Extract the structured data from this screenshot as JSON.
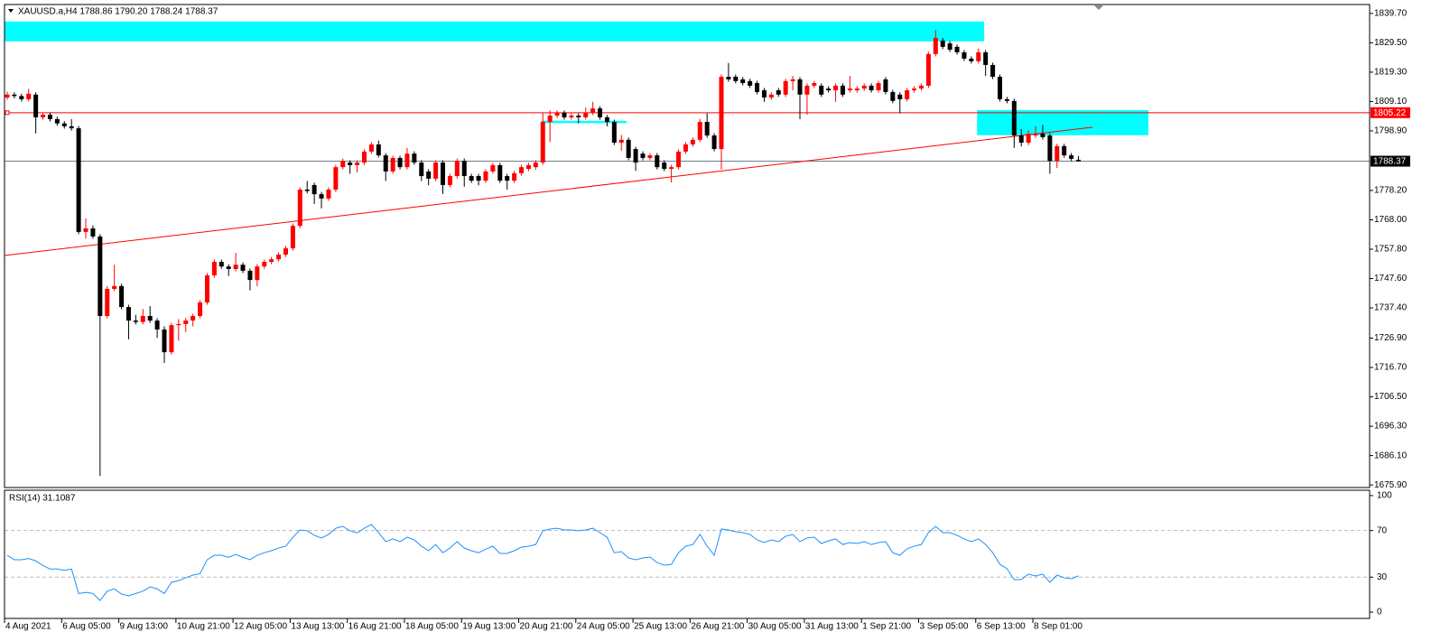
{
  "chart_data": [
    {
      "type": "candlestick",
      "title": "XAUUSD.a,H4 1788.86 1790.20 1788.24 1788.37",
      "up_color": "#ff0000",
      "down_color": "#000000",
      "categories": [
        "4 Aug 2021",
        null,
        null,
        null,
        null,
        null,
        null,
        null,
        "6 Aug 05:00",
        null,
        null,
        null,
        null,
        null,
        null,
        null,
        "9 Aug 13:00",
        null,
        null,
        null,
        null,
        null,
        null,
        null,
        "10 Aug 21:00",
        null,
        null,
        null,
        null,
        null,
        null,
        null,
        "12 Aug 05:00",
        null,
        null,
        null,
        null,
        null,
        null,
        null,
        "13 Aug 13:00",
        null,
        null,
        null,
        null,
        null,
        null,
        null,
        "16 Aug 21:00",
        null,
        null,
        null,
        null,
        null,
        null,
        null,
        "18 Aug 05:00",
        null,
        null,
        null,
        null,
        null,
        null,
        null,
        "19 Aug 13:00",
        null,
        null,
        null,
        null,
        null,
        null,
        null,
        "20 Aug 21:00",
        null,
        null,
        null,
        null,
        null,
        null,
        null,
        "24 Aug 05:00",
        null,
        null,
        null,
        null,
        null,
        null,
        null,
        "25 Aug 13:00",
        null,
        null,
        null,
        null,
        null,
        null,
        null,
        "26 Aug 21:00",
        null,
        null,
        null,
        null,
        null,
        null,
        null,
        "30 Aug 05:00",
        null,
        null,
        null,
        null,
        null,
        null,
        null,
        "31 Aug 13:00",
        null,
        null,
        null,
        null,
        null,
        null,
        null,
        "1 Sep 21:00",
        null,
        null,
        null,
        null,
        null,
        null,
        null,
        "3 Sep 05:00",
        null,
        null,
        null,
        null,
        null,
        null,
        null,
        "6 Sep 13:00",
        null,
        null,
        null,
        null,
        null,
        null,
        null,
        "8 Sep 01:00",
        null,
        null,
        null,
        null,
        null,
        null
      ],
      "open": [
        1810.5,
        1811.5,
        1811.0,
        1809.9,
        1811.5,
        1803.6,
        1804.5,
        1803.0,
        1801.5,
        1800.5,
        1799.8,
        1763.8,
        1765.0,
        1762.2,
        1734.6,
        1744.0,
        1745.0,
        1737.7,
        1733.0,
        1732.5,
        1734.6,
        1733.0,
        1729.9,
        1722.0,
        1731.4,
        1731.8,
        1733.0,
        1734.6,
        1739.3,
        1748.7,
        1753.4,
        1751.8,
        1750.9,
        1752.4,
        1750.3,
        1747.1,
        1751.8,
        1753.4,
        1754.3,
        1755.9,
        1758.1,
        1765.9,
        1778.5,
        1780.1,
        1776.9,
        1775.4,
        1778.5,
        1786.3,
        1787.9,
        1787.0,
        1787.9,
        1791.7,
        1794.2,
        1790.4,
        1784.8,
        1789.5,
        1786.3,
        1791.0,
        1787.9,
        1784.8,
        1782.3,
        1787.9,
        1780.1,
        1783.2,
        1788.5,
        1783.2,
        1783.2,
        1781.6,
        1784.8,
        1787.0,
        1783.2,
        1781.6,
        1784.2,
        1785.7,
        1786.3,
        1787.9,
        1802.0,
        1804.2,
        1805.2,
        1803.6,
        1804.2,
        1803.6,
        1805.2,
        1806.7,
        1803.6,
        1802.0,
        1794.8,
        1795.8,
        1792.6,
        1791.0,
        1789.5,
        1790.4,
        1787.9,
        1785.7,
        1786.3,
        1791.7,
        1794.2,
        1795.8,
        1802.0,
        1797.3,
        1792.6,
        1817.7,
        1817.7,
        1816.8,
        1816.2,
        1815.5,
        1813.0,
        1810.5,
        1813.0,
        1811.5,
        1816.2,
        1816.8,
        1811.5,
        1814.6,
        1814.6,
        1813.6,
        1813.0,
        1814.6,
        1813.0,
        1813.0,
        1813.6,
        1814.6,
        1813.0,
        1816.8,
        1812.4,
        1811.5,
        1809.9,
        1813.0,
        1813.6,
        1814.6,
        1825.6,
        1830.3,
        1829.3,
        1828.1,
        1826.2,
        1824.0,
        1823.1,
        1826.2,
        1821.8,
        1817.7,
        1809.9,
        1809.3,
        1797.3,
        1794.8,
        1797.3,
        1797.9,
        1797.3,
        1788.5,
        1793.6,
        1790.4,
        1788.86
      ],
      "high": [
        1812.5,
        1812.3,
        1811.8,
        1813.5,
        1812.3,
        1805.3,
        1805.3,
        1803.8,
        1802.3,
        1803.0,
        1800.6,
        1768.5,
        1766.0,
        1763.0,
        1745.0,
        1752.4,
        1745.8,
        1738.5,
        1735.0,
        1737.0,
        1738.0,
        1733.8,
        1731.0,
        1732.2,
        1733.5,
        1734.0,
        1735.4,
        1740.1,
        1749.5,
        1754.2,
        1754.2,
        1752.6,
        1756.5,
        1753.2,
        1751.1,
        1752.6,
        1754.2,
        1755.1,
        1756.7,
        1758.9,
        1766.7,
        1779.3,
        1781.5,
        1780.9,
        1777.7,
        1779.3,
        1787.1,
        1789.3,
        1788.7,
        1788.7,
        1792.5,
        1795.0,
        1795.5,
        1791.2,
        1790.3,
        1790.3,
        1793.0,
        1791.8,
        1788.7,
        1785.6,
        1788.7,
        1788.7,
        1784.0,
        1789.3,
        1789.3,
        1784.0,
        1784.0,
        1785.6,
        1787.8,
        1787.8,
        1784.0,
        1785.0,
        1787.1,
        1787.8,
        1788.7,
        1805.0,
        1806.0,
        1806.0,
        1806.0,
        1805.0,
        1805.0,
        1807.0,
        1809.0,
        1807.5,
        1804.4,
        1802.8,
        1797.5,
        1796.6,
        1793.4,
        1791.8,
        1791.2,
        1791.2,
        1788.7,
        1787.1,
        1792.5,
        1795.0,
        1796.6,
        1803.0,
        1805.0,
        1798.1,
        1818.5,
        1822.5,
        1818.5,
        1817.6,
        1817.0,
        1816.3,
        1813.8,
        1812.3,
        1813.8,
        1817.0,
        1818.0,
        1817.6,
        1815.4,
        1816.3,
        1815.4,
        1814.4,
        1815.4,
        1815.4,
        1818.0,
        1814.4,
        1815.4,
        1815.4,
        1816.3,
        1817.6,
        1813.2,
        1812.3,
        1813.8,
        1814.4,
        1815.4,
        1826.4,
        1834.0,
        1831.1,
        1830.1,
        1828.9,
        1827.0,
        1824.8,
        1827.5,
        1827.0,
        1822.6,
        1818.5,
        1810.7,
        1810.1,
        1799.5,
        1799.0,
        1800.5,
        1801.0,
        1798.1,
        1794.4,
        1794.4,
        1791.2,
        1790.2
      ],
      "low": [
        1809.7,
        1810.2,
        1809.1,
        1809.1,
        1798.0,
        1802.8,
        1802.2,
        1800.7,
        1799.7,
        1799.0,
        1763.0,
        1761.5,
        1761.4,
        1679.0,
        1733.8,
        1743.2,
        1736.9,
        1726.5,
        1731.7,
        1731.7,
        1732.2,
        1727.0,
        1718.3,
        1721.2,
        1726.0,
        1729.0,
        1731.0,
        1733.8,
        1738.5,
        1747.9,
        1751.0,
        1748.5,
        1750.1,
        1749.5,
        1743.5,
        1745.0,
        1751.0,
        1752.6,
        1753.5,
        1755.1,
        1757.3,
        1765.1,
        1777.2,
        1773.5,
        1772.0,
        1774.6,
        1777.7,
        1785.5,
        1784.0,
        1784.5,
        1787.1,
        1790.9,
        1789.6,
        1781.5,
        1784.0,
        1785.5,
        1785.5,
        1787.1,
        1781.5,
        1780.0,
        1781.5,
        1777.0,
        1779.3,
        1782.4,
        1779.5,
        1780.8,
        1780.0,
        1780.8,
        1784.0,
        1780.8,
        1778.5,
        1780.8,
        1783.4,
        1784.9,
        1785.5,
        1787.1,
        1795.0,
        1803.4,
        1802.8,
        1802.8,
        1801.5,
        1802.8,
        1804.4,
        1802.8,
        1800.5,
        1794.0,
        1792.0,
        1788.7,
        1785.0,
        1788.7,
        1788.7,
        1785.5,
        1784.9,
        1781.0,
        1785.5,
        1790.9,
        1793.4,
        1795.0,
        1796.5,
        1791.8,
        1785.5,
        1816.0,
        1815.4,
        1814.7,
        1813.8,
        1811.6,
        1809.0,
        1809.7,
        1810.7,
        1810.7,
        1813.0,
        1803.0,
        1804.5,
        1813.8,
        1810.7,
        1812.2,
        1809.0,
        1810.7,
        1812.2,
        1812.2,
        1812.8,
        1812.2,
        1812.2,
        1811.6,
        1808.5,
        1805.0,
        1809.1,
        1812.2,
        1812.8,
        1813.8,
        1824.8,
        1827.3,
        1826.3,
        1825.4,
        1823.2,
        1822.3,
        1822.3,
        1818.0,
        1816.9,
        1809.1,
        1808.5,
        1793.0,
        1793.5,
        1794.0,
        1796.5,
        1795.9,
        1784.0,
        1786.0,
        1789.6,
        1788.4,
        1788.24
      ],
      "close": [
        1811.5,
        1811.0,
        1809.9,
        1811.8,
        1803.6,
        1804.5,
        1803.0,
        1801.5,
        1800.5,
        1799.8,
        1763.8,
        1765.0,
        1762.2,
        1734.6,
        1744.0,
        1745.0,
        1737.7,
        1733.0,
        1732.5,
        1734.6,
        1733.0,
        1729.9,
        1722.0,
        1731.4,
        1731.8,
        1733.0,
        1734.6,
        1739.3,
        1748.7,
        1753.4,
        1751.8,
        1750.9,
        1752.4,
        1750.3,
        1747.1,
        1751.8,
        1753.4,
        1754.3,
        1755.9,
        1758.1,
        1765.9,
        1778.5,
        1778.0,
        1776.9,
        1775.4,
        1778.5,
        1786.3,
        1788.5,
        1787.0,
        1787.9,
        1791.7,
        1794.2,
        1790.4,
        1784.8,
        1789.5,
        1786.3,
        1791.0,
        1787.9,
        1783.2,
        1782.3,
        1787.9,
        1780.1,
        1783.2,
        1788.5,
        1783.2,
        1781.6,
        1781.6,
        1784.8,
        1787.0,
        1781.6,
        1781.6,
        1784.2,
        1786.3,
        1787.0,
        1787.9,
        1802.0,
        1804.2,
        1805.2,
        1803.6,
        1804.2,
        1803.6,
        1805.2,
        1806.7,
        1803.6,
        1802.0,
        1794.8,
        1795.8,
        1789.5,
        1787.9,
        1789.5,
        1790.4,
        1786.3,
        1785.7,
        1786.3,
        1791.7,
        1794.2,
        1795.8,
        1802.0,
        1797.3,
        1792.6,
        1817.7,
        1816.8,
        1816.2,
        1815.5,
        1814.6,
        1812.4,
        1810.5,
        1811.5,
        1811.5,
        1816.2,
        1816.8,
        1811.5,
        1814.6,
        1815.5,
        1811.5,
        1813.0,
        1814.6,
        1811.5,
        1813.6,
        1813.6,
        1814.6,
        1813.0,
        1815.5,
        1812.4,
        1809.3,
        1809.9,
        1813.0,
        1813.6,
        1814.6,
        1825.6,
        1831.2,
        1828.1,
        1827.1,
        1826.2,
        1824.0,
        1823.1,
        1826.2,
        1821.8,
        1817.7,
        1809.9,
        1809.3,
        1797.3,
        1794.8,
        1797.9,
        1797.9,
        1796.7,
        1788.5,
        1793.6,
        1790.4,
        1789.2,
        1788.37
      ],
      "ylim": [
        1675.0,
        1842.8
      ],
      "yticks": [
        {
          "value": 1675.9,
          "label": "1675.90"
        },
        {
          "value": 1686.1,
          "label": "1686.10"
        },
        {
          "value": 1696.3,
          "label": "1696.30"
        },
        {
          "value": 1706.5,
          "label": "1706.50"
        },
        {
          "value": 1716.7,
          "label": "1716.70"
        },
        {
          "value": 1726.9,
          "label": "1726.90"
        },
        {
          "value": 1737.4,
          "label": "1737.40"
        },
        {
          "value": 1747.6,
          "label": "1747.60"
        },
        {
          "value": 1757.8,
          "label": "1757.80"
        },
        {
          "value": 1768.0,
          "label": "1768.00"
        },
        {
          "value": 1778.2,
          "label": "1778.20"
        },
        {
          "value": 1798.9,
          "label": "1798.90"
        },
        {
          "value": 1809.1,
          "label": "1809.10"
        },
        {
          "value": 1819.3,
          "label": "1819.30"
        },
        {
          "value": 1829.5,
          "label": "1829.50"
        },
        {
          "value": 1839.7,
          "label": "1839.70"
        }
      ],
      "zones": [
        {
          "low": 1830.0,
          "high": 1836.9,
          "x_start": -0.4,
          "x_end": 136.8,
          "color": "#00ffff"
        },
        {
          "low": 1797.4,
          "high": 1806.1,
          "x_start": 135.8,
          "x_end": 159.8,
          "color": "#00ffff"
        },
        {
          "low": 1801.6,
          "high": 1802.4,
          "x_start": 74.8,
          "x_end": 86.7,
          "color": "#00ffff"
        }
      ],
      "trendlines": [
        {
          "x": [
            -0.4,
            152
          ],
          "y": [
            1755.6,
            1800.2
          ],
          "color": "#ff0000"
        }
      ],
      "price_lines": [
        {
          "value": 1805.22,
          "color": "#ff0000"
        },
        {
          "value": 1788.37,
          "color": "#708090",
          "label_bg": "#000000"
        }
      ]
    },
    {
      "type": "line",
      "title": "RSI(14) 31.1087",
      "color": "#1e90ff",
      "values": [
        48.8,
        45,
        45,
        46,
        44,
        40,
        37,
        37,
        36,
        37,
        16,
        17,
        16,
        10,
        18,
        20,
        15.5,
        14,
        16,
        18,
        21.7,
        20,
        16,
        25.6,
        27,
        29.5,
        31.8,
        33,
        45,
        48.8,
        48.8,
        47,
        49.6,
        47,
        45,
        48.8,
        51,
        52.7,
        55,
        56.6,
        64.3,
        70.5,
        69.8,
        65.9,
        63.6,
        66.7,
        72,
        73.6,
        69.8,
        68,
        72,
        75.2,
        68.2,
        60.5,
        62.8,
        60.5,
        64.3,
        62,
        56.6,
        52.7,
        58,
        51,
        55,
        60.5,
        55,
        52.7,
        51,
        54,
        56.6,
        50.4,
        50.4,
        52.7,
        55.8,
        56.6,
        58,
        69.8,
        71.3,
        72,
        70.5,
        70.5,
        69.8,
        70.5,
        72,
        68.2,
        64.3,
        51,
        51.9,
        46.5,
        45,
        46.5,
        47.3,
        42.6,
        40.3,
        41,
        51,
        56.6,
        58,
        66.7,
        56.6,
        48.8,
        71.3,
        70.5,
        69,
        68.2,
        66.7,
        62,
        59.7,
        62,
        60.5,
        65.1,
        66.7,
        60.5,
        63.6,
        64.3,
        58.9,
        61.2,
        62.8,
        58,
        59.7,
        58.9,
        60.5,
        58,
        59.7,
        60.5,
        51,
        48.8,
        54.3,
        56.6,
        58,
        68.2,
        73.6,
        68.2,
        68.2,
        65.9,
        62.8,
        60.5,
        62.8,
        58,
        51,
        41,
        37.2,
        27.9,
        27.9,
        32.6,
        31,
        32.6,
        25.6,
        31.8,
        29.5,
        28.7,
        31.1
      ],
      "ylim": [
        -5.4,
        104.6
      ],
      "yticks": [
        0,
        30,
        70,
        100
      ],
      "levels": [
        70,
        30
      ]
    }
  ]
}
